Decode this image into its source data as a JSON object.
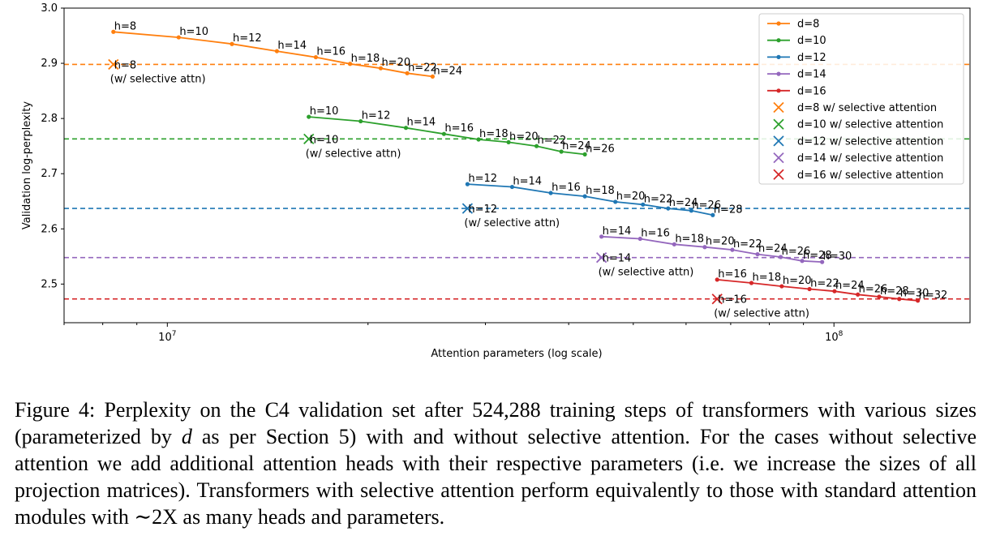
{
  "chart_data": {
    "type": "line",
    "xlabel": "Attention parameters (log scale)",
    "ylabel": "Validation log-perplexity",
    "xscale": "log",
    "xlim": [
      7000000,
      160000000
    ],
    "ylim": [
      2.43,
      3.0
    ],
    "xticks": [
      {
        "value": 10000000,
        "base": "10",
        "exp": "7"
      },
      {
        "value": 100000000,
        "base": "10",
        "exp": "8"
      }
    ],
    "yticks": [
      "2.5",
      "2.6",
      "2.7",
      "2.8",
      "2.9",
      "3.0"
    ],
    "grid": false,
    "legend_position": "top-right",
    "selective_note": "(w/ selective attn)",
    "series": [
      {
        "name": "d=8",
        "color": "#ff7f0e",
        "points": [
          {
            "x": 8300000,
            "y": 2.957,
            "label": "h=8"
          },
          {
            "x": 10400000,
            "y": 2.947,
            "label": "h=10"
          },
          {
            "x": 12500000,
            "y": 2.935,
            "label": "h=12"
          },
          {
            "x": 14600000,
            "y": 2.922,
            "label": "h=14"
          },
          {
            "x": 16700000,
            "y": 2.911,
            "label": "h=16"
          },
          {
            "x": 18800000,
            "y": 2.899,
            "label": "h=18"
          },
          {
            "x": 20900000,
            "y": 2.891,
            "label": "h=20"
          },
          {
            "x": 22900000,
            "y": 2.882,
            "label": "h=22"
          },
          {
            "x": 25000000,
            "y": 2.876,
            "label": "h=24"
          }
        ],
        "selective": {
          "name": "d=8 w/ selective attention",
          "x": 8300000,
          "y": 2.898,
          "label": "h=8"
        }
      },
      {
        "name": "d=10",
        "color": "#2ca02c",
        "points": [
          {
            "x": 16300000,
            "y": 2.803,
            "label": "h=10"
          },
          {
            "x": 19500000,
            "y": 2.795,
            "label": "h=12"
          },
          {
            "x": 22800000,
            "y": 2.783,
            "label": "h=14"
          },
          {
            "x": 26000000,
            "y": 2.772,
            "label": "h=16"
          },
          {
            "x": 29300000,
            "y": 2.762,
            "label": "h=18"
          },
          {
            "x": 32500000,
            "y": 2.757,
            "label": "h=20"
          },
          {
            "x": 35800000,
            "y": 2.75,
            "label": "h=22"
          },
          {
            "x": 39000000,
            "y": 2.74,
            "label": "h=24"
          },
          {
            "x": 42300000,
            "y": 2.735,
            "label": "h=26"
          }
        ],
        "selective": {
          "name": "d=10 w/ selective attention",
          "x": 16300000,
          "y": 2.763,
          "label": "h=10"
        }
      },
      {
        "name": "d=12",
        "color": "#1f77b4",
        "points": [
          {
            "x": 28200000,
            "y": 2.681,
            "label": "h=12"
          },
          {
            "x": 32900000,
            "y": 2.676,
            "label": "h=14"
          },
          {
            "x": 37600000,
            "y": 2.665,
            "label": "h=16"
          },
          {
            "x": 42300000,
            "y": 2.659,
            "label": "h=18"
          },
          {
            "x": 47000000,
            "y": 2.649,
            "label": "h=20"
          },
          {
            "x": 51700000,
            "y": 2.644,
            "label": "h=22"
          },
          {
            "x": 56400000,
            "y": 2.637,
            "label": "h=24"
          },
          {
            "x": 61100000,
            "y": 2.633,
            "label": "h=26"
          },
          {
            "x": 65800000,
            "y": 2.625,
            "label": "h=28"
          }
        ],
        "selective": {
          "name": "d=12 w/ selective attention",
          "x": 28200000,
          "y": 2.637,
          "label": "h=12"
        }
      },
      {
        "name": "d=14",
        "color": "#9467bd",
        "points": [
          {
            "x": 44800000,
            "y": 2.586,
            "label": "h=14"
          },
          {
            "x": 51200000,
            "y": 2.582,
            "label": "h=16"
          },
          {
            "x": 57600000,
            "y": 2.572,
            "label": "h=18"
          },
          {
            "x": 64000000,
            "y": 2.567,
            "label": "h=20"
          },
          {
            "x": 70400000,
            "y": 2.562,
            "label": "h=22"
          },
          {
            "x": 76800000,
            "y": 2.554,
            "label": "h=24"
          },
          {
            "x": 83200000,
            "y": 2.549,
            "label": "h=26"
          },
          {
            "x": 89600000,
            "y": 2.542,
            "label": "h=28"
          },
          {
            "x": 96000000,
            "y": 2.54,
            "label": "h=30"
          }
        ],
        "selective": {
          "name": "d=14 w/ selective attention",
          "x": 44800000,
          "y": 2.548,
          "label": "h=14"
        }
      },
      {
        "name": "d=16",
        "color": "#d62728",
        "points": [
          {
            "x": 66800000,
            "y": 2.508,
            "label": "h=16"
          },
          {
            "x": 75200000,
            "y": 2.502,
            "label": "h=18"
          },
          {
            "x": 83500000,
            "y": 2.496,
            "label": "h=20"
          },
          {
            "x": 91900000,
            "y": 2.491,
            "label": "h=22"
          },
          {
            "x": 100200000,
            "y": 2.487,
            "label": "h=24"
          },
          {
            "x": 108600000,
            "y": 2.481,
            "label": "h=26"
          },
          {
            "x": 116900000,
            "y": 2.477,
            "label": "h=28"
          },
          {
            "x": 125300000,
            "y": 2.473,
            "label": "h=30"
          },
          {
            "x": 133600000,
            "y": 2.47,
            "label": "h=32"
          }
        ],
        "selective": {
          "name": "d=16 w/ selective attention",
          "x": 66800000,
          "y": 2.473,
          "label": "h=16"
        }
      }
    ]
  },
  "caption": {
    "parts": [
      "Figure 4: Perplexity on the C4 validation set after 524,288 training steps of transformers with various sizes (parameterized by ",
      "d",
      " as per Section 5) with and without selective attention.  For the cases without selective attention we add additional attention heads with their respective parameters (i.e. we increase the sizes of all projection matrices).  Transformers with selective attention perform equivalently to those with standard attention modules with ",
      "∼",
      "2X as many heads and parameters."
    ]
  }
}
